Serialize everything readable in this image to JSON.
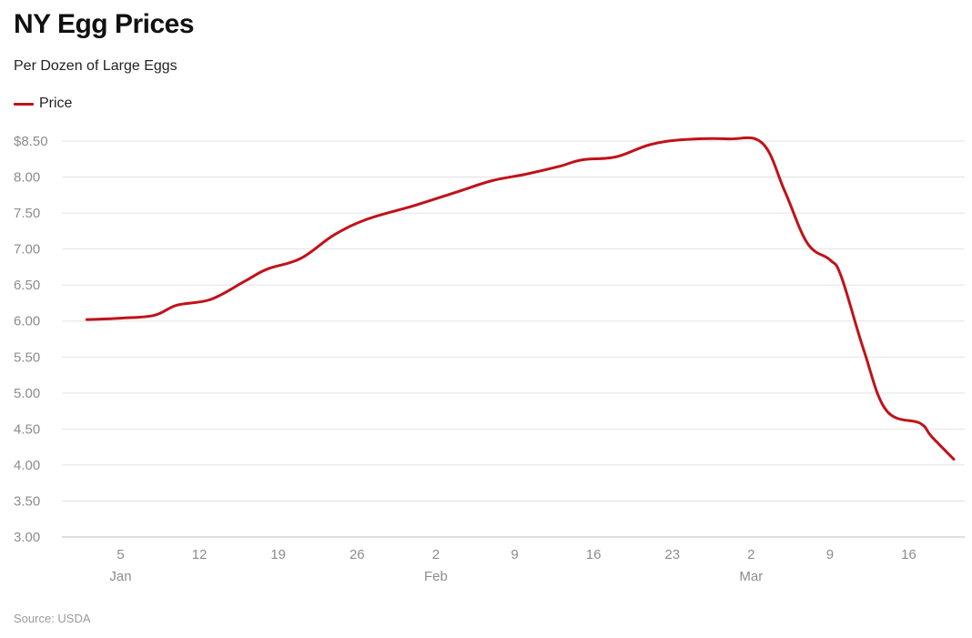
{
  "title": "NY Egg Prices",
  "subtitle": "Per Dozen of Large Eggs",
  "legend_label": "Price",
  "source": "Source: USDA",
  "colors": {
    "line": "#c0121a",
    "grid": "#e2e2e2",
    "axis_text": "#8c8c8c"
  },
  "chart_data": {
    "type": "line",
    "title": "NY Egg Prices",
    "subtitle": "Per Dozen of Large Eggs",
    "xlabel": "",
    "ylabel": "",
    "ylim": [
      3.0,
      8.5
    ],
    "xlim": [
      "2023-01-01",
      "2023-03-20"
    ],
    "grid": true,
    "legend_position": "top-left",
    "y_ticks": [
      {
        "value": 8.5,
        "label": "$8.50"
      },
      {
        "value": 8.0,
        "label": "8.00"
      },
      {
        "value": 7.5,
        "label": "7.50"
      },
      {
        "value": 7.0,
        "label": "7.00"
      },
      {
        "value": 6.5,
        "label": "6.50"
      },
      {
        "value": 6.0,
        "label": "6.00"
      },
      {
        "value": 5.5,
        "label": "5.50"
      },
      {
        "value": 5.0,
        "label": "5.00"
      },
      {
        "value": 4.5,
        "label": "4.50"
      },
      {
        "value": 4.0,
        "label": "4.00"
      },
      {
        "value": 3.5,
        "label": "3.50"
      },
      {
        "value": 3.0,
        "label": "3.00"
      }
    ],
    "x_ticks": [
      {
        "date": "2023-01-05",
        "label": "5",
        "month": "Jan"
      },
      {
        "date": "2023-01-12",
        "label": "12",
        "month": ""
      },
      {
        "date": "2023-01-19",
        "label": "19",
        "month": ""
      },
      {
        "date": "2023-01-26",
        "label": "26",
        "month": ""
      },
      {
        "date": "2023-02-02",
        "label": "2",
        "month": "Feb"
      },
      {
        "date": "2023-02-09",
        "label": "9",
        "month": ""
      },
      {
        "date": "2023-02-16",
        "label": "16",
        "month": ""
      },
      {
        "date": "2023-02-23",
        "label": "23",
        "month": ""
      },
      {
        "date": "2023-03-02",
        "label": "2",
        "month": "Mar"
      },
      {
        "date": "2023-03-09",
        "label": "9",
        "month": ""
      },
      {
        "date": "2023-03-16",
        "label": "16",
        "month": ""
      }
    ],
    "series": [
      {
        "name": "Price",
        "points": [
          {
            "x": "2023-01-02",
            "y": 6.02
          },
          {
            "x": "2023-01-05",
            "y": 6.04
          },
          {
            "x": "2023-01-08",
            "y": 6.08
          },
          {
            "x": "2023-01-10",
            "y": 6.22
          },
          {
            "x": "2023-01-13",
            "y": 6.3
          },
          {
            "x": "2023-01-16",
            "y": 6.55
          },
          {
            "x": "2023-01-18",
            "y": 6.72
          },
          {
            "x": "2023-01-21",
            "y": 6.87
          },
          {
            "x": "2023-01-24",
            "y": 7.2
          },
          {
            "x": "2023-01-27",
            "y": 7.42
          },
          {
            "x": "2023-01-31",
            "y": 7.6
          },
          {
            "x": "2023-02-04",
            "y": 7.8
          },
          {
            "x": "2023-02-07",
            "y": 7.95
          },
          {
            "x": "2023-02-10",
            "y": 8.04
          },
          {
            "x": "2023-02-13",
            "y": 8.15
          },
          {
            "x": "2023-02-15",
            "y": 8.24
          },
          {
            "x": "2023-02-18",
            "y": 8.28
          },
          {
            "x": "2023-02-21",
            "y": 8.45
          },
          {
            "x": "2023-02-24",
            "y": 8.52
          },
          {
            "x": "2023-02-28",
            "y": 8.53
          },
          {
            "x": "2023-03-03",
            "y": 8.47
          },
          {
            "x": "2023-03-05",
            "y": 7.8
          },
          {
            "x": "2023-03-07",
            "y": 7.08
          },
          {
            "x": "2023-03-09",
            "y": 6.85
          },
          {
            "x": "2023-03-10",
            "y": 6.62
          },
          {
            "x": "2023-03-12",
            "y": 5.6
          },
          {
            "x": "2023-03-14",
            "y": 4.76
          },
          {
            "x": "2023-03-17",
            "y": 4.58
          },
          {
            "x": "2023-03-18",
            "y": 4.4
          },
          {
            "x": "2023-03-20",
            "y": 4.08
          }
        ]
      }
    ]
  }
}
